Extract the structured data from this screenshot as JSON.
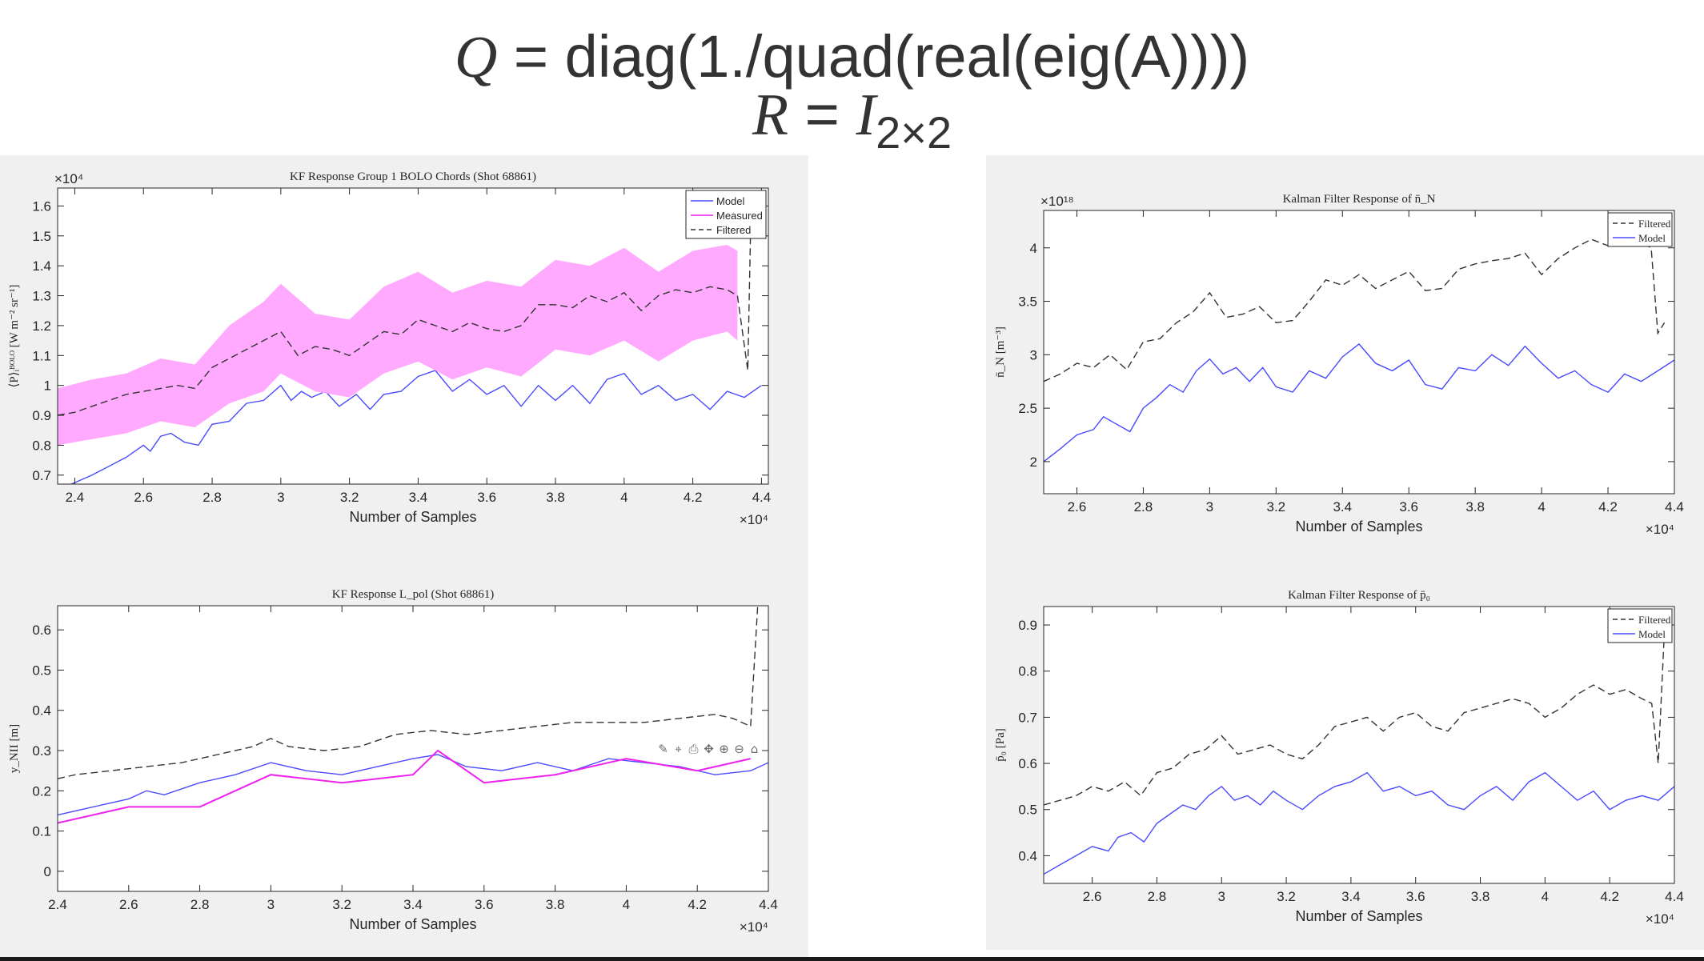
{
  "header": {
    "eq1_lhs": "Q",
    "eq1_rhs": "= diag(1./quad(real(eig(A))))",
    "eq2_lhs": "R",
    "eq2_mid": "= ",
    "eq2_I": "I",
    "eq2_sub": "2×2"
  },
  "toolbar": {
    "icons": [
      "brush-icon",
      "datatip-icon",
      "export-icon",
      "pan-icon",
      "zoom-in-icon",
      "zoom-out-icon",
      "home-icon"
    ]
  },
  "colors": {
    "model": "#4a4aff",
    "measured": "#ee22ee",
    "measured_band": "#ffaaff",
    "filtered": "#333333",
    "panel_bg": "#f0f0f0"
  },
  "chart_data": [
    {
      "id": "bolo",
      "type": "line",
      "title": "KF Response Group 1 BOLO Chords (Shot 68861)",
      "xlabel": "Number of Samples",
      "ylabel": "⟨P⟩ᵢᴮᴼᴸᴼ [W m⁻² sr⁻¹]",
      "x_exponent": "×10⁴",
      "y_exponent": "×10⁴",
      "xlim": [
        2.35,
        4.42
      ],
      "ylim": [
        0.67,
        1.66
      ],
      "xticks": [
        2.4,
        2.6,
        2.8,
        3,
        3.2,
        3.4,
        3.6,
        3.8,
        4,
        4.2,
        4.4
      ],
      "yticks": [
        0.7,
        0.8,
        0.9,
        1,
        1.1,
        1.2,
        1.3,
        1.4,
        1.5,
        1.6
      ],
      "legend": {
        "position": "top-right",
        "entries": [
          "Model",
          "Measured",
          "Filtered"
        ]
      },
      "series": [
        {
          "name": "Model",
          "style": "solid",
          "color": "#4a4aff",
          "x": [
            2.35,
            2.45,
            2.55,
            2.6,
            2.62,
            2.65,
            2.68,
            2.72,
            2.76,
            2.8,
            2.85,
            2.9,
            2.95,
            3.0,
            3.03,
            3.06,
            3.09,
            3.13,
            3.17,
            3.22,
            3.26,
            3.3,
            3.35,
            3.4,
            3.45,
            3.5,
            3.55,
            3.6,
            3.65,
            3.7,
            3.75,
            3.8,
            3.85,
            3.9,
            3.95,
            4.0,
            4.05,
            4.1,
            4.15,
            4.2,
            4.25,
            4.3,
            4.35,
            4.4
          ],
          "y": [
            0.65,
            0.7,
            0.76,
            0.8,
            0.78,
            0.83,
            0.84,
            0.81,
            0.8,
            0.87,
            0.88,
            0.94,
            0.95,
            1.0,
            0.95,
            0.98,
            0.96,
            0.98,
            0.93,
            0.97,
            0.92,
            0.97,
            0.98,
            1.03,
            1.05,
            0.98,
            1.02,
            0.97,
            1.0,
            0.93,
            1.0,
            0.95,
            1.0,
            0.94,
            1.02,
            1.04,
            0.97,
            1.0,
            0.95,
            0.97,
            0.92,
            0.98,
            0.96,
            1.0
          ]
        },
        {
          "name": "Measured",
          "style": "band",
          "color": "#ffaaff",
          "x": [
            2.35,
            2.45,
            2.55,
            2.65,
            2.75,
            2.85,
            2.95,
            3.0,
            3.1,
            3.2,
            3.3,
            3.4,
            3.5,
            3.6,
            3.7,
            3.8,
            3.9,
            4.0,
            4.1,
            4.2,
            4.3,
            4.33
          ],
          "lower": [
            0.8,
            0.82,
            0.84,
            0.88,
            0.86,
            0.94,
            0.98,
            1.04,
            0.98,
            0.96,
            1.04,
            1.08,
            1.02,
            1.06,
            1.03,
            1.12,
            1.1,
            1.15,
            1.08,
            1.15,
            1.18,
            1.15
          ],
          "upper": [
            0.99,
            1.02,
            1.04,
            1.09,
            1.07,
            1.2,
            1.28,
            1.34,
            1.24,
            1.22,
            1.33,
            1.38,
            1.31,
            1.35,
            1.33,
            1.42,
            1.4,
            1.46,
            1.38,
            1.45,
            1.47,
            1.45
          ]
        },
        {
          "name": "Filtered",
          "style": "dashed",
          "color": "#333333",
          "x": [
            2.35,
            2.4,
            2.45,
            2.5,
            2.55,
            2.6,
            2.65,
            2.7,
            2.75,
            2.8,
            2.85,
            2.9,
            2.95,
            3.0,
            3.05,
            3.1,
            3.15,
            3.2,
            3.25,
            3.3,
            3.35,
            3.4,
            3.45,
            3.5,
            3.55,
            3.6,
            3.65,
            3.7,
            3.75,
            3.8,
            3.85,
            3.9,
            3.95,
            4.0,
            4.05,
            4.1,
            4.15,
            4.2,
            4.25,
            4.3,
            4.33,
            4.36,
            4.37
          ],
          "y": [
            0.9,
            0.91,
            0.93,
            0.95,
            0.97,
            0.98,
            0.99,
            1.0,
            0.99,
            1.06,
            1.09,
            1.12,
            1.15,
            1.18,
            1.1,
            1.13,
            1.12,
            1.1,
            1.14,
            1.18,
            1.17,
            1.22,
            1.2,
            1.18,
            1.21,
            1.19,
            1.18,
            1.2,
            1.27,
            1.27,
            1.26,
            1.3,
            1.28,
            1.31,
            1.25,
            1.3,
            1.32,
            1.31,
            1.33,
            1.32,
            1.3,
            1.05,
            1.63
          ]
        }
      ]
    },
    {
      "id": "lpol",
      "type": "line",
      "title": "KF Response L_pol (Shot 68861)",
      "xlabel": "Number of Samples",
      "ylabel": "y_NII [m]",
      "x_exponent": "×10⁴",
      "xlim": [
        2.4,
        4.4
      ],
      "ylim": [
        -0.05,
        0.66
      ],
      "xticks": [
        2.4,
        2.6,
        2.8,
        3,
        3.2,
        3.4,
        3.6,
        3.8,
        4,
        4.2,
        4.4
      ],
      "yticks": [
        0,
        0.1,
        0.2,
        0.3,
        0.4,
        0.5,
        0.6
      ],
      "series": [
        {
          "name": "Model",
          "style": "solid",
          "color": "#4a4aff",
          "x": [
            2.4,
            2.5,
            2.6,
            2.65,
            2.7,
            2.8,
            2.9,
            3.0,
            3.1,
            3.2,
            3.3,
            3.4,
            3.47,
            3.55,
            3.65,
            3.75,
            3.85,
            3.95,
            4.05,
            4.15,
            4.25,
            4.35,
            4.4
          ],
          "y": [
            0.14,
            0.16,
            0.18,
            0.2,
            0.19,
            0.22,
            0.24,
            0.27,
            0.25,
            0.24,
            0.26,
            0.28,
            0.29,
            0.26,
            0.25,
            0.27,
            0.25,
            0.28,
            0.27,
            0.26,
            0.24,
            0.25,
            0.27
          ]
        },
        {
          "name": "Measured",
          "style": "solid",
          "color": "#ee22ee",
          "x": [
            2.4,
            2.6,
            2.8,
            3.0,
            3.2,
            3.4,
            3.47,
            3.6,
            3.8,
            4.0,
            4.2,
            4.35
          ],
          "y": [
            0.12,
            0.16,
            0.16,
            0.24,
            0.22,
            0.24,
            0.3,
            0.22,
            0.24,
            0.28,
            0.25,
            0.28
          ]
        },
        {
          "name": "Filtered",
          "style": "dashed",
          "color": "#333333",
          "x": [
            2.4,
            2.45,
            2.55,
            2.65,
            2.75,
            2.85,
            2.95,
            3.0,
            3.05,
            3.15,
            3.25,
            3.35,
            3.45,
            3.55,
            3.65,
            3.75,
            3.85,
            3.95,
            4.05,
            4.15,
            4.25,
            4.3,
            4.35,
            4.37
          ],
          "y": [
            0.23,
            0.24,
            0.25,
            0.26,
            0.27,
            0.29,
            0.31,
            0.33,
            0.31,
            0.3,
            0.31,
            0.34,
            0.35,
            0.34,
            0.35,
            0.36,
            0.37,
            0.37,
            0.37,
            0.38,
            0.39,
            0.38,
            0.36,
            0.66
          ]
        }
      ]
    },
    {
      "id": "nN",
      "type": "line",
      "title": "Kalman Filter Response of n̄_N",
      "xlabel": "Number of Samples",
      "ylabel": "n̄_N [m⁻³]",
      "x_exponent": "×10⁴",
      "y_exponent": "×10¹⁸",
      "xlim": [
        2.5,
        4.4
      ],
      "ylim": [
        1.7,
        4.35
      ],
      "xticks": [
        2.6,
        2.8,
        3,
        3.2,
        3.4,
        3.6,
        3.8,
        4,
        4.2,
        4.4
      ],
      "yticks": [
        2,
        2.5,
        3,
        3.5,
        4
      ],
      "legend": {
        "position": "top-right",
        "entries": [
          "Filtered",
          "Model"
        ]
      },
      "series": [
        {
          "name": "Filtered",
          "style": "dashed",
          "color": "#333333",
          "x": [
            2.5,
            2.55,
            2.6,
            2.65,
            2.7,
            2.75,
            2.8,
            2.85,
            2.9,
            2.95,
            3.0,
            3.05,
            3.1,
            3.15,
            3.2,
            3.25,
            3.3,
            3.35,
            3.4,
            3.45,
            3.5,
            3.55,
            3.6,
            3.65,
            3.7,
            3.75,
            3.8,
            3.85,
            3.9,
            3.95,
            4.0,
            4.05,
            4.1,
            4.15,
            4.2,
            4.25,
            4.3,
            4.33,
            4.35,
            4.37
          ],
          "y": [
            2.75,
            2.82,
            2.92,
            2.88,
            3.0,
            2.86,
            3.12,
            3.15,
            3.3,
            3.4,
            3.58,
            3.35,
            3.38,
            3.45,
            3.3,
            3.32,
            3.5,
            3.7,
            3.65,
            3.75,
            3.62,
            3.7,
            3.78,
            3.6,
            3.62,
            3.8,
            3.85,
            3.88,
            3.9,
            3.95,
            3.75,
            3.9,
            4.0,
            4.08,
            4.02,
            4.1,
            4.05,
            4.0,
            3.2,
            3.3
          ]
        },
        {
          "name": "Model",
          "style": "solid",
          "color": "#4a4aff",
          "x": [
            2.5,
            2.55,
            2.6,
            2.65,
            2.68,
            2.72,
            2.76,
            2.8,
            2.84,
            2.88,
            2.92,
            2.96,
            3.0,
            3.04,
            3.08,
            3.12,
            3.16,
            3.2,
            3.25,
            3.3,
            3.35,
            3.4,
            3.45,
            3.5,
            3.55,
            3.6,
            3.65,
            3.7,
            3.75,
            3.8,
            3.85,
            3.9,
            3.95,
            4.0,
            4.05,
            4.1,
            4.15,
            4.2,
            4.25,
            4.3,
            4.35,
            4.4
          ],
          "y": [
            2.0,
            2.12,
            2.25,
            2.3,
            2.42,
            2.35,
            2.28,
            2.5,
            2.6,
            2.72,
            2.65,
            2.85,
            2.96,
            2.82,
            2.88,
            2.75,
            2.88,
            2.7,
            2.65,
            2.85,
            2.78,
            2.98,
            3.1,
            2.92,
            2.85,
            2.95,
            2.72,
            2.68,
            2.88,
            2.85,
            3.0,
            2.9,
            3.08,
            2.92,
            2.78,
            2.85,
            2.72,
            2.65,
            2.82,
            2.75,
            2.85,
            2.95
          ]
        }
      ]
    },
    {
      "id": "p0",
      "type": "line",
      "title": "Kalman Filter Response of p̄₀",
      "xlabel": "Number of Samples",
      "ylabel": "p̄₀ [Pa]",
      "x_exponent": "×10⁴",
      "xlim": [
        2.45,
        4.4
      ],
      "ylim": [
        0.34,
        0.94
      ],
      "xticks": [
        2.6,
        2.8,
        3,
        3.2,
        3.4,
        3.6,
        3.8,
        4,
        4.2,
        4.4
      ],
      "yticks": [
        0.4,
        0.5,
        0.6,
        0.7,
        0.8,
        0.9
      ],
      "legend": {
        "position": "top-right",
        "entries": [
          "Filtered",
          "Model"
        ]
      },
      "series": [
        {
          "name": "Filtered",
          "style": "dashed",
          "color": "#333333",
          "x": [
            2.45,
            2.5,
            2.55,
            2.6,
            2.65,
            2.7,
            2.75,
            2.8,
            2.85,
            2.9,
            2.95,
            3.0,
            3.05,
            3.1,
            3.15,
            3.2,
            3.25,
            3.3,
            3.35,
            3.4,
            3.45,
            3.5,
            3.55,
            3.6,
            3.65,
            3.7,
            3.75,
            3.8,
            3.85,
            3.9,
            3.95,
            4.0,
            4.05,
            4.1,
            4.15,
            4.2,
            4.25,
            4.3,
            4.33,
            4.35,
            4.37
          ],
          "y": [
            0.51,
            0.52,
            0.53,
            0.55,
            0.54,
            0.56,
            0.53,
            0.58,
            0.59,
            0.62,
            0.63,
            0.66,
            0.62,
            0.63,
            0.64,
            0.62,
            0.61,
            0.64,
            0.68,
            0.69,
            0.7,
            0.67,
            0.7,
            0.71,
            0.68,
            0.67,
            0.71,
            0.72,
            0.73,
            0.74,
            0.73,
            0.7,
            0.72,
            0.75,
            0.77,
            0.75,
            0.76,
            0.74,
            0.73,
            0.6,
            0.9
          ]
        },
        {
          "name": "Model",
          "style": "solid",
          "color": "#4a4aff",
          "x": [
            2.45,
            2.5,
            2.55,
            2.6,
            2.65,
            2.68,
            2.72,
            2.76,
            2.8,
            2.84,
            2.88,
            2.92,
            2.96,
            3.0,
            3.04,
            3.08,
            3.12,
            3.16,
            3.2,
            3.25,
            3.3,
            3.35,
            3.4,
            3.45,
            3.5,
            3.55,
            3.6,
            3.65,
            3.7,
            3.75,
            3.8,
            3.85,
            3.9,
            3.95,
            4.0,
            4.05,
            4.1,
            4.15,
            4.2,
            4.25,
            4.3,
            4.35,
            4.4
          ],
          "y": [
            0.36,
            0.38,
            0.4,
            0.42,
            0.41,
            0.44,
            0.45,
            0.43,
            0.47,
            0.49,
            0.51,
            0.5,
            0.53,
            0.55,
            0.52,
            0.53,
            0.51,
            0.54,
            0.52,
            0.5,
            0.53,
            0.55,
            0.56,
            0.58,
            0.54,
            0.55,
            0.53,
            0.54,
            0.51,
            0.5,
            0.53,
            0.55,
            0.52,
            0.56,
            0.58,
            0.55,
            0.52,
            0.54,
            0.5,
            0.52,
            0.53,
            0.52,
            0.55
          ]
        }
      ]
    }
  ]
}
